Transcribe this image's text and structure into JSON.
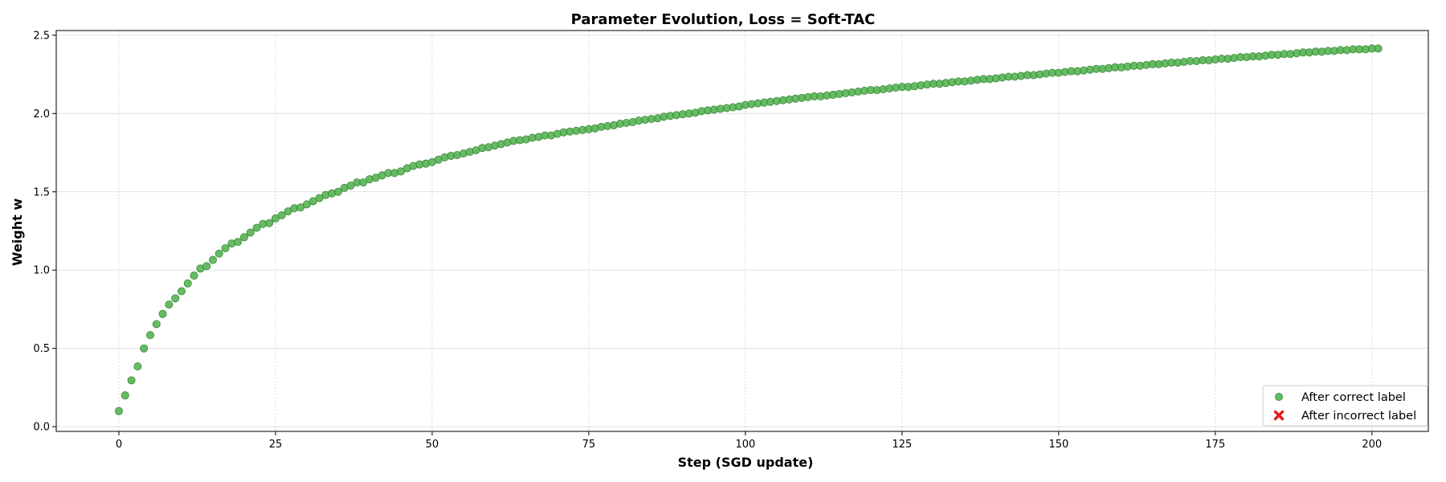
{
  "colors": {
    "correct": "#4daf4a",
    "incorrect": "#e41a1c",
    "grid": "#b0b0b0"
  },
  "chart_data": {
    "type": "scatter",
    "title": "Parameter Evolution, Loss = Soft-TAC",
    "xlabel": "Step (SGD update)",
    "ylabel": "Weight w",
    "xlim": [
      -10,
      209
    ],
    "ylim": [
      -0.03,
      2.53
    ],
    "xticks": [
      0,
      25,
      50,
      75,
      100,
      125,
      150,
      175,
      200
    ],
    "yticks": [
      0.0,
      0.5,
      1.0,
      1.5,
      2.0,
      2.5
    ],
    "xtick_labels": [
      "0",
      "25",
      "50",
      "75",
      "100",
      "125",
      "150",
      "175",
      "200"
    ],
    "ytick_labels": [
      "0.0",
      "0.5",
      "1.0",
      "1.5",
      "2.0",
      "2.5"
    ],
    "grid": true,
    "legend_position": "bottom-right",
    "series": [
      {
        "name": "After correct label",
        "marker": "circle",
        "x_start": 0,
        "x_step": 1,
        "y": [
          0.1,
          0.2,
          0.296,
          0.385,
          0.5,
          0.585,
          0.655,
          0.72,
          0.78,
          0.82,
          0.865,
          0.915,
          0.965,
          1.01,
          1.025,
          1.065,
          1.105,
          1.14,
          1.17,
          1.18,
          1.21,
          1.24,
          1.27,
          1.295,
          1.3,
          1.33,
          1.35,
          1.375,
          1.395,
          1.4,
          1.42,
          1.44,
          1.46,
          1.48,
          1.49,
          1.5,
          1.525,
          1.54,
          1.56,
          1.56,
          1.58,
          1.59,
          1.605,
          1.62,
          1.62,
          1.63,
          1.65,
          1.665,
          1.675,
          1.68,
          1.69,
          1.705,
          1.72,
          1.73,
          1.735,
          1.745,
          1.755,
          1.765,
          1.78,
          1.785,
          1.795,
          1.805,
          1.815,
          1.825,
          1.83,
          1.835,
          1.845,
          1.85,
          1.86,
          1.86,
          1.87,
          1.88,
          1.885,
          1.89,
          1.895,
          1.9,
          1.905,
          1.915,
          1.92,
          1.925,
          1.935,
          1.94,
          1.945,
          1.955,
          1.96,
          1.965,
          1.97,
          1.98,
          1.985,
          1.99,
          1.995,
          2.0,
          2.005,
          2.015,
          2.02,
          2.025,
          2.03,
          2.035,
          2.04,
          2.045,
          2.055,
          2.06,
          2.065,
          2.07,
          2.075,
          2.08,
          2.085,
          2.09,
          2.095,
          2.1,
          2.105,
          2.11,
          2.11,
          2.115,
          2.12,
          2.125,
          2.13,
          2.135,
          2.14,
          2.145,
          2.15,
          2.15,
          2.155,
          2.16,
          2.165,
          2.17,
          2.17,
          2.175,
          2.18,
          2.185,
          2.19,
          2.19,
          2.195,
          2.2,
          2.205,
          2.205,
          2.21,
          2.215,
          2.22,
          2.22,
          2.225,
          2.23,
          2.235,
          2.235,
          2.24,
          2.245,
          2.245,
          2.25,
          2.255,
          2.26,
          2.26,
          2.265,
          2.27,
          2.27,
          2.275,
          2.28,
          2.285,
          2.285,
          2.29,
          2.295,
          2.295,
          2.3,
          2.305,
          2.305,
          2.31,
          2.315,
          2.315,
          2.32,
          2.325,
          2.325,
          2.33,
          2.335,
          2.335,
          2.34,
          2.34,
          2.345,
          2.35,
          2.35,
          2.355,
          2.36,
          2.36,
          2.365,
          2.365,
          2.37,
          2.375,
          2.375,
          2.38,
          2.38,
          2.385,
          2.39,
          2.39,
          2.395,
          2.395,
          2.4,
          2.4,
          2.405,
          2.405,
          2.41,
          2.41,
          2.41,
          2.415,
          2.415
        ]
      },
      {
        "name": "After incorrect label",
        "marker": "x",
        "x": [],
        "y": []
      }
    ]
  }
}
